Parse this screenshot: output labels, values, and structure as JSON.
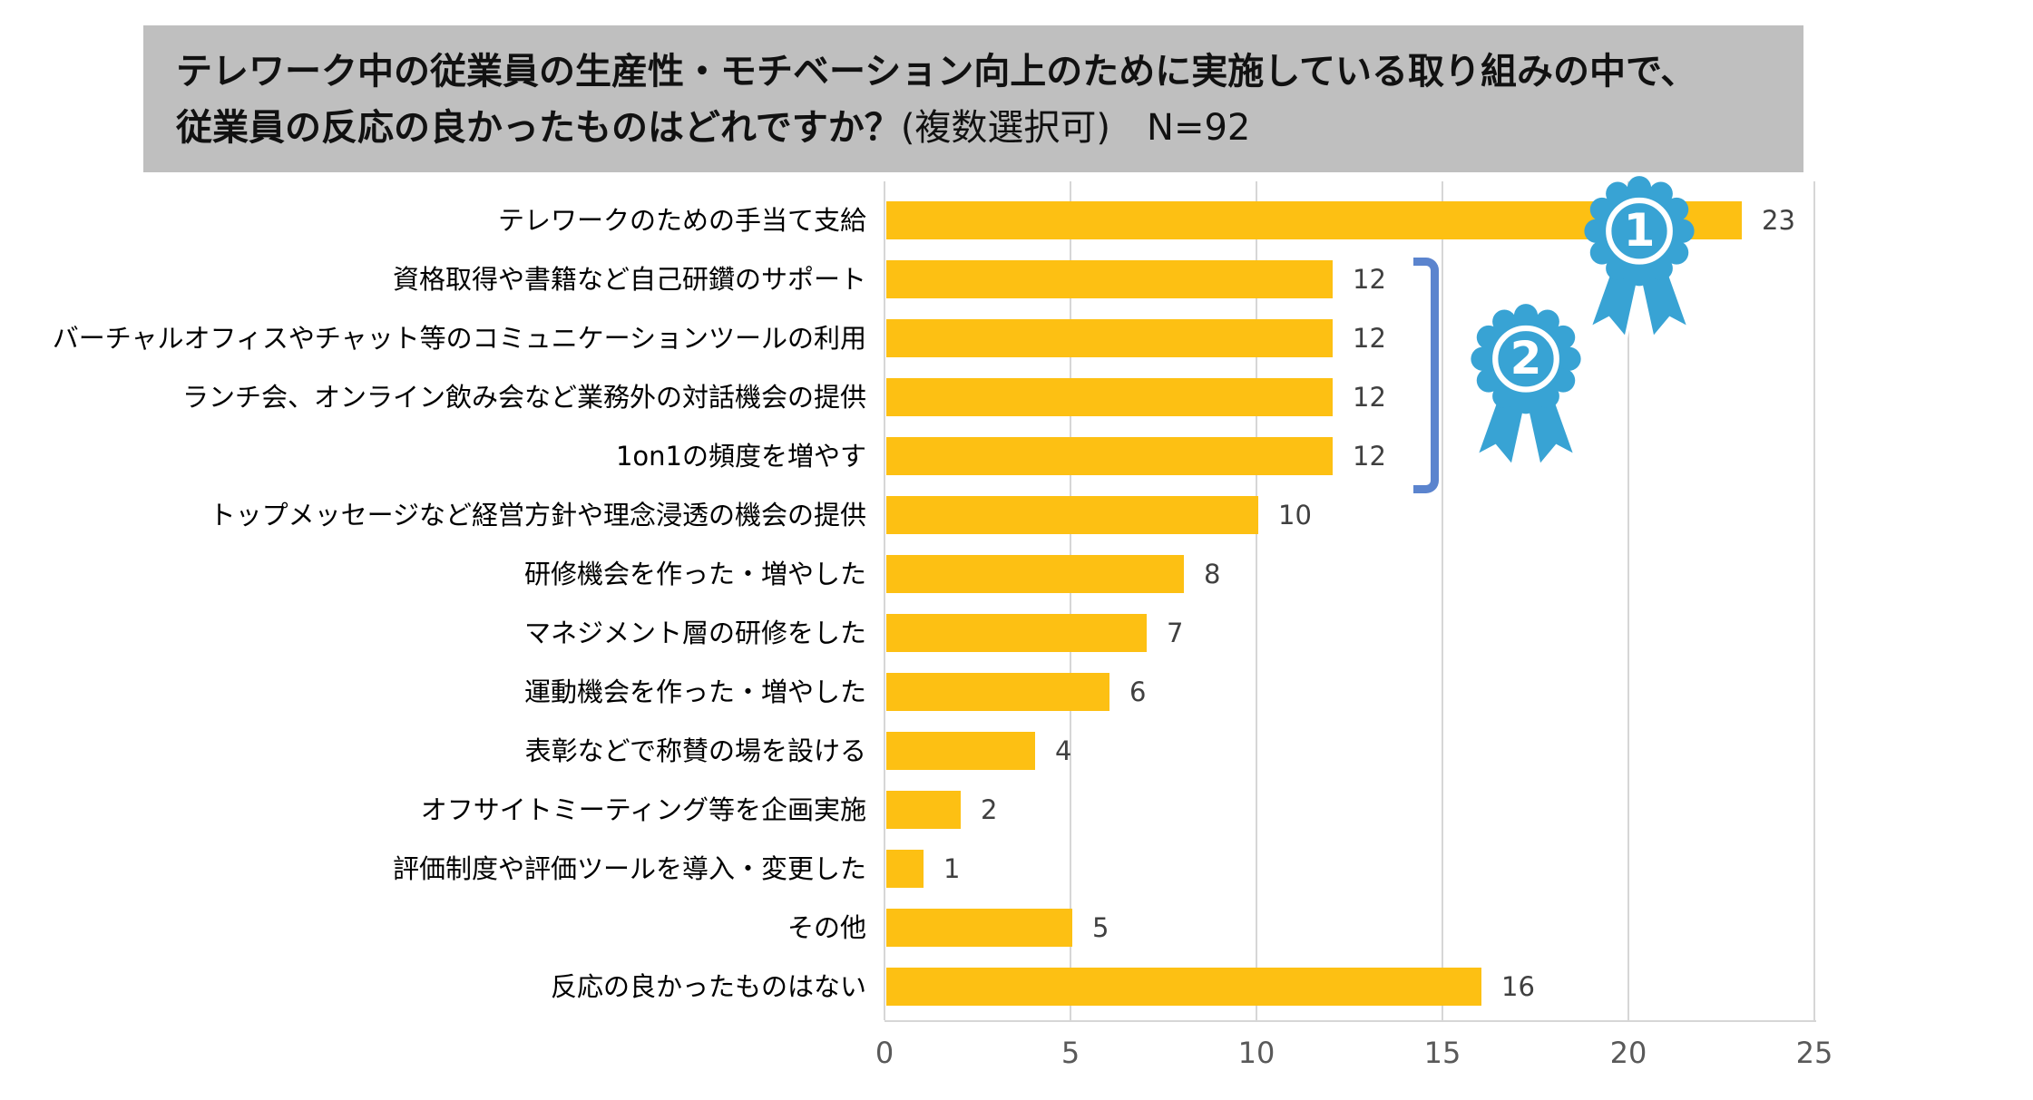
{
  "header": {
    "title_line1": "テレワーク中の従業員の生産性・モチベーション向上のために実施している取り組みの中で、",
    "title_line2_bold": "従業員の反応の良かったものはどれですか？",
    "title_line2_regular": "(複数選択可)　N=92"
  },
  "chart_data": {
    "type": "bar",
    "orientation": "horizontal",
    "title": "テレワーク中の従業員の生産性・モチベーション向上のために実施している取り組みの中で、従業員の反応の良かったものはどれですか？(複数選択可) N=92",
    "n": 92,
    "categories": [
      "テレワークのための手当て支給",
      "資格取得や書籍など自己研鑽のサポート",
      "バーチャルオフィスやチャット等のコミュニケーションツールの利用",
      "ランチ会、オンライン飲み会など業務外の対話機会の提供",
      "1on1の頻度を増やす",
      "トップメッセージなど経営方針や理念浸透の機会の提供",
      "研修機会を作った・増やした",
      "マネジメント層の研修をした",
      "運動機会を作った・増やした",
      "表彰などで称賛の場を設ける",
      "オフサイトミーティング等を企画実施",
      "評価制度や評価ツールを導入・変更した",
      "その他",
      "反応の良かったものはない"
    ],
    "values": [
      23,
      12,
      12,
      12,
      12,
      10,
      8,
      7,
      6,
      4,
      2,
      1,
      5,
      16
    ],
    "xlim": [
      0,
      25
    ],
    "x_ticks": [
      "0",
      "5",
      "10",
      "15",
      "20",
      "25"
    ],
    "grid": true,
    "legend": "none",
    "annotations": {
      "rank1": {
        "label": "1",
        "applies_to": "テレワークのための手当て支給"
      },
      "rank2": {
        "label": "2",
        "applies_to": [
          "資格取得や書籍など自己研鑽のサポート",
          "バーチャルオフィスやチャット等のコミュニケーションツールの利用",
          "ランチ会、オンライン飲み会など業務外の対話機会の提供",
          "1on1の頻度を増やす"
        ]
      }
    }
  },
  "colors": {
    "title_bg": "#bfbfbf",
    "bar": "#fdc013",
    "badge": "#38a3d4",
    "badge_number": "#ffffff",
    "bracket": "#5b84ce",
    "value_label": "#404040",
    "axis_label": "#595959",
    "gridline": "#d6d6d6"
  }
}
